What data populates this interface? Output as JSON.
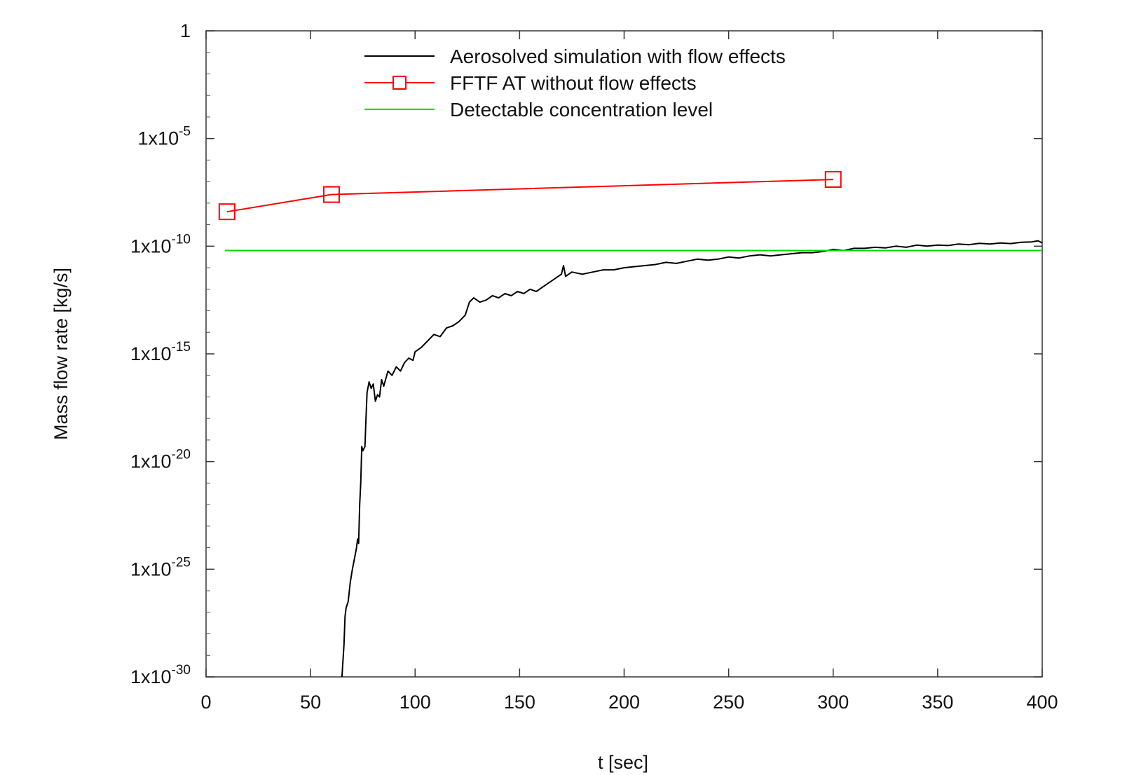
{
  "chart_data": {
    "type": "line",
    "xlabel": "t [sec]",
    "ylabel": "Mass flow rate [kg/s]",
    "xlim": [
      0,
      400
    ],
    "ylim_log10": [
      -30,
      0
    ],
    "y_scale": "log",
    "grid": false,
    "legend_position": "top-right",
    "x_ticks": [
      {
        "value": 0,
        "label": "0"
      },
      {
        "value": 50,
        "label": "50"
      },
      {
        "value": 100,
        "label": "100"
      },
      {
        "value": 150,
        "label": "150"
      },
      {
        "value": 200,
        "label": "200"
      },
      {
        "value": 250,
        "label": "250"
      },
      {
        "value": 300,
        "label": "300"
      },
      {
        "value": 350,
        "label": "350"
      },
      {
        "value": 400,
        "label": "400"
      }
    ],
    "y_ticks": [
      {
        "exp": 0,
        "base": "1",
        "sup": ""
      },
      {
        "exp": -5,
        "base": "1x10",
        "sup": "-5"
      },
      {
        "exp": -10,
        "base": "1x10",
        "sup": "-10"
      },
      {
        "exp": -15,
        "base": "1x10",
        "sup": "-15"
      },
      {
        "exp": -20,
        "base": "1x10",
        "sup": "-20"
      },
      {
        "exp": -25,
        "base": "1x10",
        "sup": "-25"
      },
      {
        "exp": -30,
        "base": "1x10",
        "sup": "-30"
      }
    ],
    "series": [
      {
        "name": "Aerosolved simulation with flow effects",
        "color": "#000000",
        "marker": "none",
        "log10_points": [
          [
            65,
            -30
          ],
          [
            66,
            -28.5
          ],
          [
            66.5,
            -27.2
          ],
          [
            67,
            -26.8
          ],
          [
            68,
            -26.5
          ],
          [
            69,
            -25.6
          ],
          [
            70,
            -25
          ],
          [
            71,
            -24.5
          ],
          [
            72,
            -24
          ],
          [
            72.5,
            -23.6
          ],
          [
            73,
            -23.8
          ],
          [
            73.5,
            -22
          ],
          [
            74,
            -21
          ],
          [
            74.5,
            -19.3
          ],
          [
            75,
            -19.5
          ],
          [
            76,
            -19.3
          ],
          [
            76.5,
            -18
          ],
          [
            77,
            -16.8
          ],
          [
            78,
            -16.3
          ],
          [
            79,
            -16.6
          ],
          [
            80,
            -16.4
          ],
          [
            81,
            -17.2
          ],
          [
            82,
            -16.9
          ],
          [
            83,
            -17
          ],
          [
            84,
            -16.2
          ],
          [
            85,
            -16.5
          ],
          [
            87,
            -15.8
          ],
          [
            89,
            -16
          ],
          [
            91,
            -15.6
          ],
          [
            93,
            -15.8
          ],
          [
            95,
            -15.4
          ],
          [
            97,
            -15.2
          ],
          [
            99,
            -15.3
          ],
          [
            100,
            -14.9
          ],
          [
            103,
            -14.7
          ],
          [
            106,
            -14.4
          ],
          [
            109,
            -14.1
          ],
          [
            112,
            -14.2
          ],
          [
            115,
            -13.8
          ],
          [
            118,
            -13.7
          ],
          [
            121,
            -13.5
          ],
          [
            124,
            -13.2
          ],
          [
            126,
            -12.6
          ],
          [
            128,
            -12.4
          ],
          [
            131,
            -12.6
          ],
          [
            134,
            -12.5
          ],
          [
            137,
            -12.3
          ],
          [
            140,
            -12.4
          ],
          [
            143,
            -12.2
          ],
          [
            146,
            -12.3
          ],
          [
            149,
            -12.1
          ],
          [
            152,
            -12.2
          ],
          [
            155,
            -12
          ],
          [
            158,
            -12.1
          ],
          [
            161,
            -11.9
          ],
          [
            164,
            -11.7
          ],
          [
            167,
            -11.5
          ],
          [
            170,
            -11.3
          ],
          [
            171,
            -10.9
          ],
          [
            172,
            -11.4
          ],
          [
            175,
            -11.2
          ],
          [
            180,
            -11.3
          ],
          [
            185,
            -11.2
          ],
          [
            190,
            -11.1
          ],
          [
            195,
            -11.1
          ],
          [
            200,
            -11
          ],
          [
            205,
            -10.95
          ],
          [
            210,
            -10.9
          ],
          [
            215,
            -10.85
          ],
          [
            220,
            -10.75
          ],
          [
            225,
            -10.8
          ],
          [
            230,
            -10.7
          ],
          [
            235,
            -10.6
          ],
          [
            240,
            -10.65
          ],
          [
            245,
            -10.6
          ],
          [
            250,
            -10.5
          ],
          [
            255,
            -10.55
          ],
          [
            260,
            -10.45
          ],
          [
            265,
            -10.4
          ],
          [
            270,
            -10.45
          ],
          [
            275,
            -10.4
          ],
          [
            280,
            -10.35
          ],
          [
            285,
            -10.3
          ],
          [
            290,
            -10.3
          ],
          [
            295,
            -10.25
          ],
          [
            300,
            -10.15
          ],
          [
            305,
            -10.2
          ],
          [
            310,
            -10.1
          ],
          [
            315,
            -10.1
          ],
          [
            320,
            -10.05
          ],
          [
            325,
            -10.08
          ],
          [
            330,
            -10
          ],
          [
            335,
            -10.05
          ],
          [
            340,
            -9.95
          ],
          [
            345,
            -10
          ],
          [
            350,
            -9.95
          ],
          [
            355,
            -9.97
          ],
          [
            360,
            -9.9
          ],
          [
            365,
            -9.93
          ],
          [
            370,
            -9.87
          ],
          [
            375,
            -9.9
          ],
          [
            380,
            -9.85
          ],
          [
            385,
            -9.88
          ],
          [
            390,
            -9.82
          ],
          [
            395,
            -9.8
          ],
          [
            398,
            -9.75
          ],
          [
            400,
            -9.85
          ]
        ]
      },
      {
        "name": "FFTF AT without flow effects",
        "color": "#ff0000",
        "marker": "square",
        "log10_points": [
          [
            10,
            -8.4
          ],
          [
            60,
            -7.6
          ],
          [
            300,
            -6.9
          ]
        ]
      },
      {
        "name": "Detectable concentration level",
        "color": "#00dd00",
        "marker": "none",
        "log10_points": [
          [
            9,
            -10.2
          ],
          [
            400,
            -10.2
          ]
        ]
      }
    ]
  }
}
